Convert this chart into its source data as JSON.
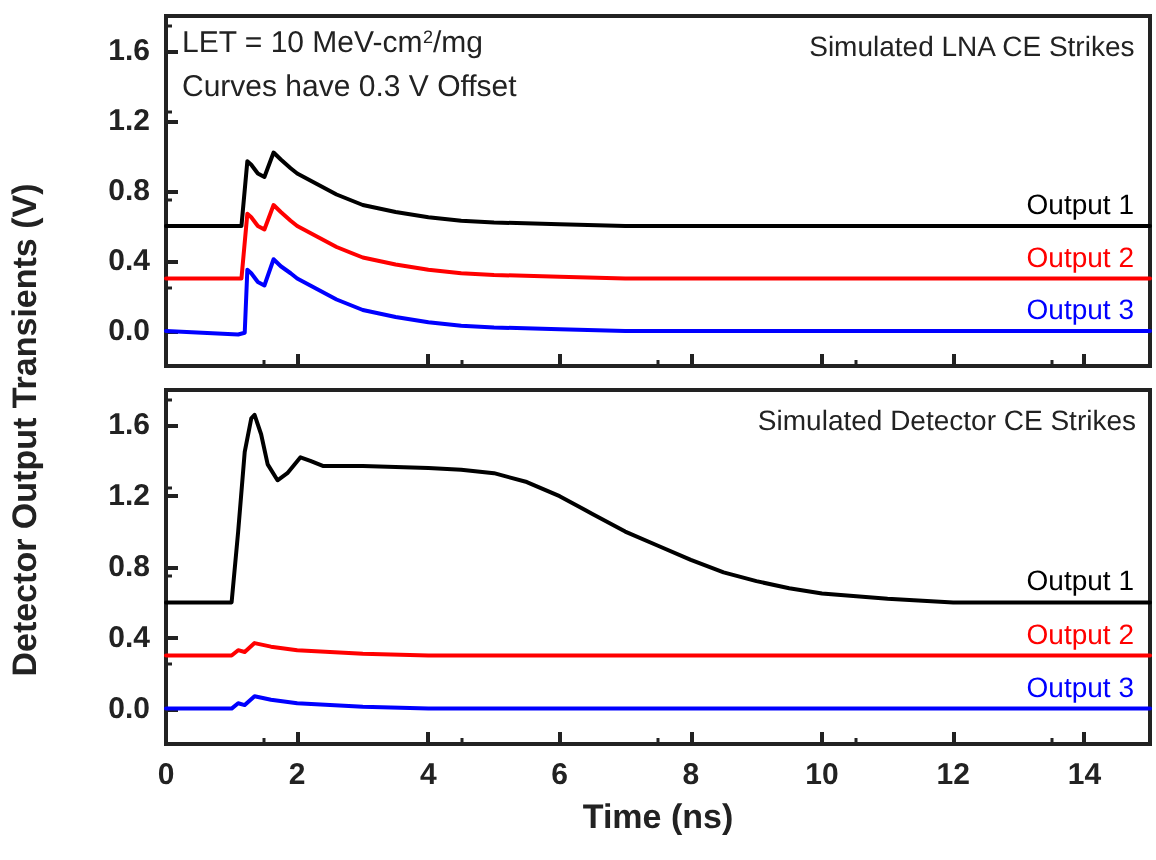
{
  "chart_data": [
    {
      "type": "line",
      "ylabel": "Detector Output Transients (V)",
      "annotations": [
        "LET = 10 MeV-cm$^{2}$/mg",
        "Curves have 0.3 V Offset",
        "Simulated LNA CE Strikes"
      ],
      "xlim": [
        0,
        15
      ],
      "xticks": [
        0,
        2,
        4,
        6,
        8,
        10,
        12,
        14
      ],
      "ylim": [
        -0.2,
        1.8
      ],
      "yticks": [
        {
          "value": 0,
          "label": "0.0"
        },
        0.4,
        0.8,
        1.2,
        1.6
      ],
      "tick_labels": "y",
      "legend": false,
      "marker": "none",
      "line_style": "solid",
      "series": [
        {
          "name": "Output 1",
          "color": "#000000",
          "x": [
            0,
            1.15,
            1.24,
            1.3,
            1.4,
            1.5,
            1.64,
            1.75,
            1.9,
            2.0,
            2.3,
            2.6,
            3.0,
            3.5,
            4.0,
            4.5,
            5.0,
            6.0,
            7.0,
            10.0,
            15.0
          ],
          "values": [
            0.6,
            0.6,
            0.97,
            0.95,
            0.9,
            0.88,
            1.02,
            0.98,
            0.93,
            0.9,
            0.84,
            0.78,
            0.72,
            0.68,
            0.65,
            0.63,
            0.62,
            0.61,
            0.6,
            0.6,
            0.6
          ]
        },
        {
          "name": "Output 2",
          "color": "#ff0000",
          "x": [
            0,
            1.15,
            1.24,
            1.3,
            1.4,
            1.5,
            1.64,
            1.75,
            1.9,
            2.0,
            2.3,
            2.6,
            3.0,
            3.5,
            4.0,
            4.5,
            5.0,
            6.0,
            7.0,
            10.0,
            15.0
          ],
          "values": [
            0.3,
            0.3,
            0.67,
            0.65,
            0.6,
            0.58,
            0.72,
            0.68,
            0.63,
            0.6,
            0.54,
            0.48,
            0.42,
            0.38,
            0.35,
            0.33,
            0.32,
            0.31,
            0.3,
            0.3,
            0.3
          ]
        },
        {
          "name": "Output 3",
          "color": "#0000ff",
          "x": [
            0,
            1.1,
            1.2,
            1.24,
            1.3,
            1.4,
            1.5,
            1.64,
            1.75,
            1.9,
            2.0,
            2.3,
            2.6,
            3.0,
            3.5,
            4.0,
            4.5,
            5.0,
            6.0,
            7.0,
            10.0,
            15.0
          ],
          "values": [
            0.0,
            -0.02,
            -0.01,
            0.35,
            0.33,
            0.28,
            0.26,
            0.41,
            0.37,
            0.33,
            0.3,
            0.24,
            0.18,
            0.12,
            0.08,
            0.05,
            0.03,
            0.02,
            0.01,
            0.0,
            0.0,
            0.0
          ]
        }
      ]
    },
    {
      "type": "line",
      "xlabel": "Time (ns)",
      "annotations": [
        "Simulated Detector CE Strikes"
      ],
      "xlim": [
        0,
        15
      ],
      "xticks": [
        0,
        2,
        4,
        6,
        8,
        10,
        12,
        14
      ],
      "ylim": [
        -0.2,
        1.8
      ],
      "yticks": [
        {
          "value": 0,
          "label": "0.0"
        },
        0.4,
        0.8,
        1.2,
        1.6
      ],
      "legend": false,
      "marker": "none",
      "line_style": "solid",
      "series": [
        {
          "name": "Output 1",
          "color": "#000000",
          "x": [
            0,
            1.0,
            1.1,
            1.2,
            1.3,
            1.35,
            1.45,
            1.55,
            1.7,
            1.85,
            2.05,
            2.2,
            2.4,
            3.0,
            4.0,
            4.5,
            5.0,
            5.5,
            6.0,
            6.5,
            7.0,
            7.5,
            8.0,
            8.5,
            9.0,
            9.5,
            10.0,
            11.0,
            12.0,
            15.0
          ],
          "values": [
            0.6,
            0.6,
            1.0,
            1.45,
            1.64,
            1.66,
            1.55,
            1.38,
            1.29,
            1.33,
            1.42,
            1.4,
            1.37,
            1.37,
            1.36,
            1.35,
            1.33,
            1.28,
            1.2,
            1.1,
            1.0,
            0.92,
            0.84,
            0.77,
            0.72,
            0.68,
            0.65,
            0.62,
            0.6,
            0.6
          ]
        },
        {
          "name": "Output 2",
          "color": "#ff0000",
          "x": [
            0,
            1.0,
            1.1,
            1.2,
            1.35,
            1.6,
            2.0,
            3.0,
            4.0,
            15.0
          ],
          "values": [
            0.3,
            0.3,
            0.33,
            0.32,
            0.37,
            0.35,
            0.33,
            0.31,
            0.3,
            0.3
          ]
        },
        {
          "name": "Output 3",
          "color": "#0000ff",
          "x": [
            0,
            1.0,
            1.1,
            1.2,
            1.35,
            1.6,
            2.0,
            3.0,
            4.0,
            15.0
          ],
          "values": [
            0.0,
            0.0,
            0.03,
            0.02,
            0.07,
            0.05,
            0.03,
            0.01,
            0.0,
            0.0
          ]
        }
      ]
    }
  ]
}
